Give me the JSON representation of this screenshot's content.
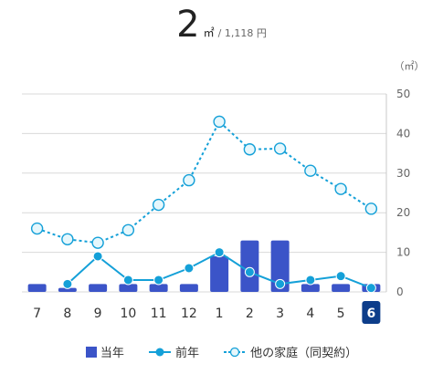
{
  "header": {
    "value": "2",
    "unit": "㎡",
    "sub": "/ 1,118 円"
  },
  "chart_data": {
    "type": "bar",
    "unit_label": "（㎡）",
    "categories": [
      "7",
      "8",
      "9",
      "10",
      "11",
      "12",
      "1",
      "2",
      "3",
      "4",
      "5",
      "6"
    ],
    "highlighted_category": "6",
    "ylim": [
      0,
      50
    ],
    "yticks": [
      0,
      10,
      20,
      30,
      40,
      50
    ],
    "grid": true,
    "legend_position": "bottom",
    "series": [
      {
        "name": "当年",
        "type": "bar",
        "color": "#3b54c8",
        "values": [
          2,
          1,
          2,
          2,
          2,
          2,
          9,
          13,
          13,
          2,
          2,
          2
        ]
      },
      {
        "name": "前年",
        "type": "line",
        "color": "#14a0d8",
        "values": [
          null,
          2,
          9,
          3,
          3,
          6,
          10,
          5,
          2,
          3,
          4,
          1
        ]
      },
      {
        "name": "他の家庭（同契約）",
        "type": "line-dashed",
        "color": "#14a0d8",
        "marker_fill": "#e6f7fc",
        "values": [
          16,
          13.3,
          12.4,
          15.6,
          22,
          28.2,
          43,
          36,
          36.2,
          30.6,
          26,
          21
        ]
      }
    ]
  }
}
